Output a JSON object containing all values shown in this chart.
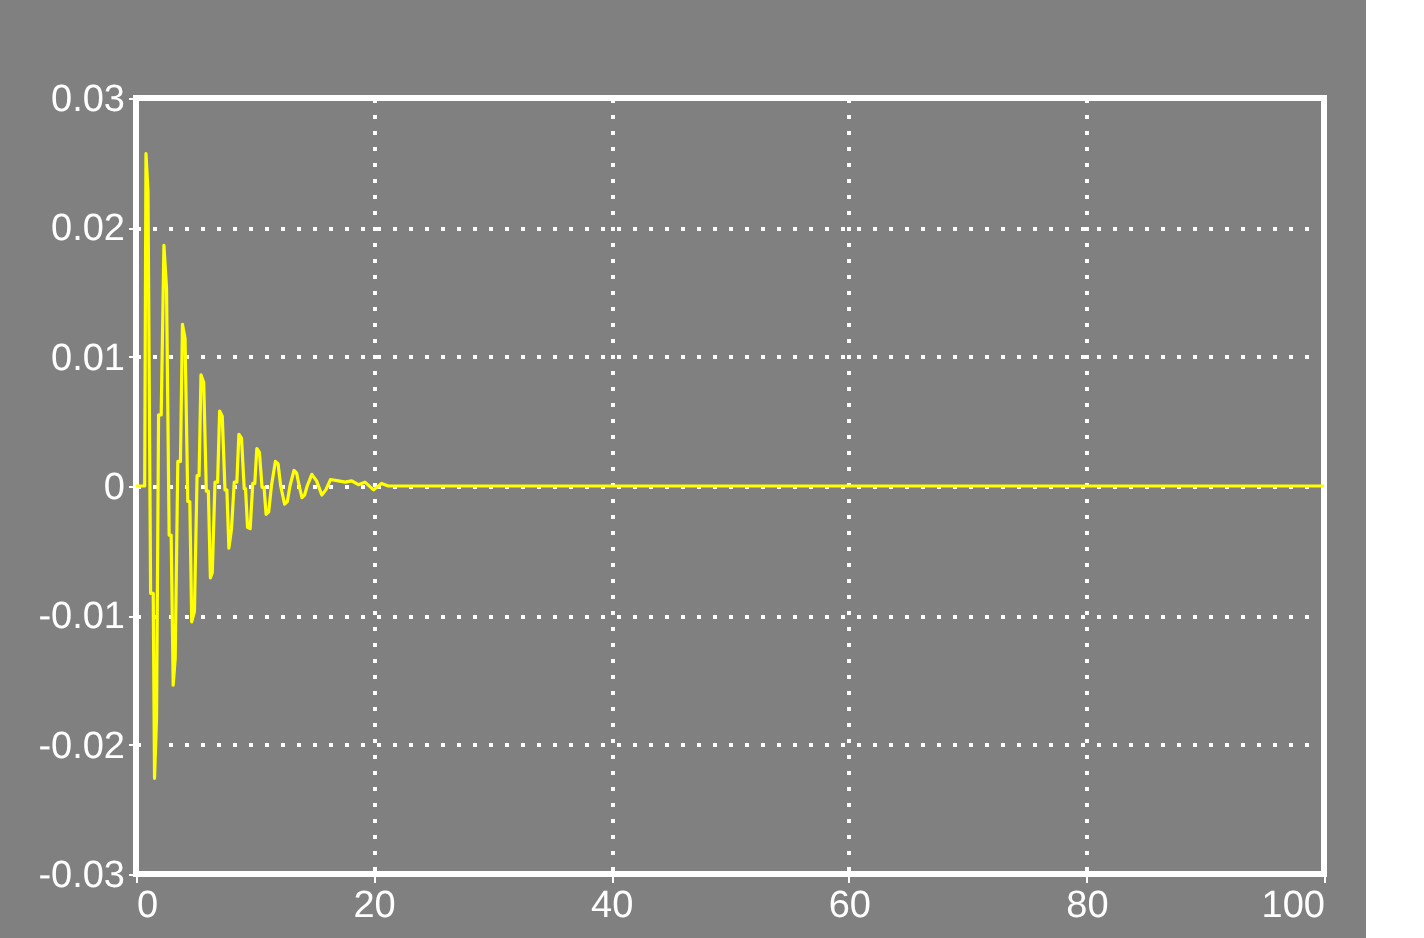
{
  "chart_data": {
    "type": "line",
    "x": [
      0,
      0.73,
      0.84,
      1.01,
      1.23,
      1.45,
      1.56,
      1.73,
      1.9,
      2.12,
      2.35,
      2.57,
      2.79,
      2.96,
      3.13,
      3.3,
      3.52,
      3.74,
      3.91,
      4.13,
      4.36,
      4.53,
      4.69,
      4.92,
      5.14,
      5.31,
      5.47,
      5.7,
      5.92,
      6.09,
      6.26,
      6.42,
      6.65,
      6.87,
      7.04,
      7.26,
      7.49,
      7.65,
      7.82,
      8.04,
      8.27,
      8.49,
      8.66,
      8.88,
      9.11,
      9.22,
      9.39,
      9.61,
      9.83,
      10.0,
      10.17,
      10.39,
      10.61,
      10.78,
      10.95,
      11.17,
      11.4,
      11.73,
      11.96,
      12.18,
      12.51,
      12.74,
      12.96,
      13.3,
      13.52,
      13.74,
      13.97,
      14.19,
      14.41,
      14.8,
      15.2,
      15.64,
      15.98,
      16.37,
      17.04,
      17.6,
      18.16,
      18.72,
      19.27,
      20.0,
      20.67,
      21.23,
      100
    ],
    "series": [
      {
        "color": "#ffff00",
        "values": [
          0,
          0,
          0.0257,
          0.0228,
          -0.0083,
          -0.0083,
          -0.0226,
          -0.0179,
          0.0055,
          0.0055,
          0.0186,
          0.0153,
          -0.0038,
          -0.0038,
          -0.0154,
          -0.0133,
          0.0019,
          0.0019,
          0.0125,
          0.0114,
          -0.0012,
          -0.0012,
          -0.0105,
          -0.0097,
          0.0008,
          0.0008,
          0.0086,
          0.008,
          -0.0004,
          -0.0004,
          -0.0071,
          -0.0067,
          0.0003,
          0.0003,
          0.0058,
          0.0054,
          -0.0003,
          -0.0003,
          -0.0048,
          -0.0033,
          0.0003,
          0.0003,
          0.004,
          0.0037,
          -0.0002,
          -0.0002,
          -0.0032,
          -0.0033,
          0.0002,
          0.0002,
          0.0029,
          0.0026,
          -0.0001,
          -0.0001,
          -0.0022,
          -0.002,
          0,
          0.0019,
          0.0017,
          0,
          -0.0014,
          -0.0012,
          0,
          0.0012,
          0.001,
          0,
          -0.0009,
          -0.0007,
          0,
          0.0009,
          0.0004,
          -0.0007,
          -0.0003,
          0.0005,
          0.0004,
          0.0003,
          0.0004,
          0.0001,
          0.0003,
          -0.0003,
          0.0002,
          0,
          0
        ]
      }
    ],
    "xlim": [
      0,
      100
    ],
    "xticks": [
      0,
      20,
      40,
      60,
      80,
      100
    ],
    "ylim": [
      -0.03,
      0.03
    ],
    "yticks": [
      {
        "value": -0.03,
        "label": "-0.03"
      },
      {
        "value": -0.02,
        "label": "-0.02"
      },
      {
        "value": -0.01,
        "label": "-0.01"
      },
      0,
      0.01,
      0.02,
      0.03
    ],
    "grid": true,
    "marker": "none",
    "line_style": "solid"
  }
}
